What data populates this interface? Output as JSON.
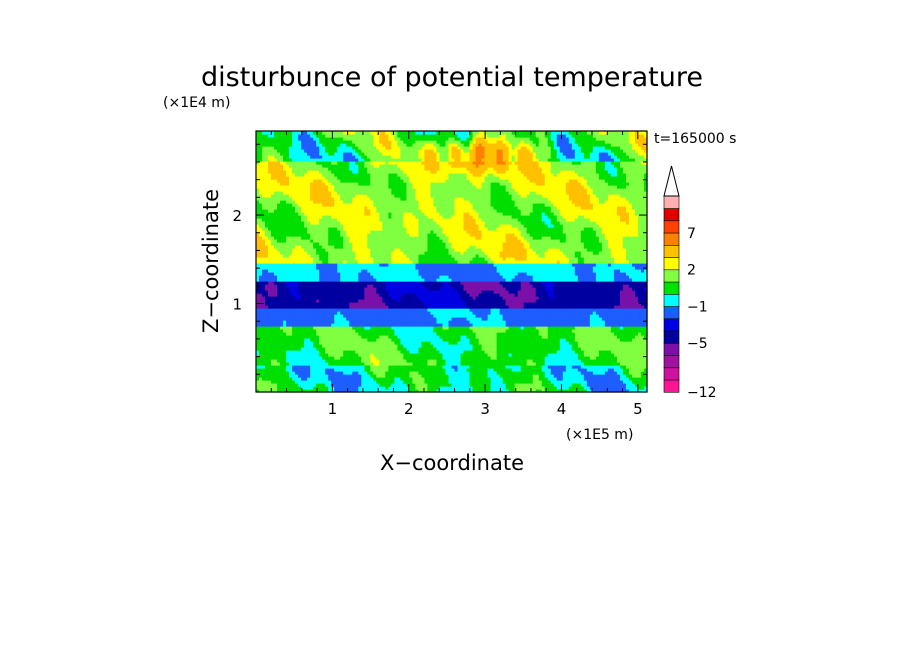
{
  "chart_data": {
    "type": "heatmap",
    "title": "disturbunce of potential temperature",
    "xlabel": "X−coordinate",
    "ylabel": "Z−coordinate",
    "x_units": "(×1E5 m)",
    "y_units": "(×1E4 m)",
    "time_label": "t=165000 s",
    "xlim": [
      0,
      5.12
    ],
    "ylim": [
      0,
      2.95
    ],
    "x_ticks": [
      1,
      2,
      3,
      4,
      5
    ],
    "y_ticks": [
      1,
      2
    ],
    "colorbar": {
      "levels": [
        -12,
        -11,
        -9,
        -7,
        -5,
        -4,
        -3,
        -1,
        0,
        1,
        2,
        3,
        5,
        7,
        8,
        9
      ],
      "labeled_ticks": [
        -12,
        -5,
        -1,
        2,
        7
      ],
      "colors": [
        "#ff1493",
        "#d0109e",
        "#a0119f",
        "#7a10a8",
        "#0000a0",
        "#0000e0",
        "#1e5dff",
        "#00ffff",
        "#00e000",
        "#80ff40",
        "#ffff00",
        "#ffc000",
        "#ff8000",
        "#ff4000",
        "#e00000",
        "#ffb0b0",
        "#ffffff"
      ],
      "extends_max": true
    },
    "layers": [
      {
        "z_range": [
          0.0,
          0.3
        ],
        "mean": 0.0,
        "noise": 1.2
      },
      {
        "z_range": [
          0.3,
          0.75
        ],
        "mean": 0.6,
        "noise": 1.0
      },
      {
        "z_range": [
          0.75,
          0.95
        ],
        "mean": -1.5,
        "noise": 0.8
      },
      {
        "z_range": [
          0.95,
          1.25
        ],
        "mean": -4.5,
        "noise": 0.8
      },
      {
        "z_range": [
          1.25,
          1.45
        ],
        "mean": -1.0,
        "noise": 0.8
      },
      {
        "z_range": [
          1.45,
          2.6
        ],
        "mean": 1.8,
        "noise": 1.2
      },
      {
        "z_range": [
          2.6,
          2.95
        ],
        "mean": 0.6,
        "noise": 1.6
      }
    ],
    "warm_core": {
      "x": 3.0,
      "z": 2.7,
      "peak": 6
    }
  }
}
